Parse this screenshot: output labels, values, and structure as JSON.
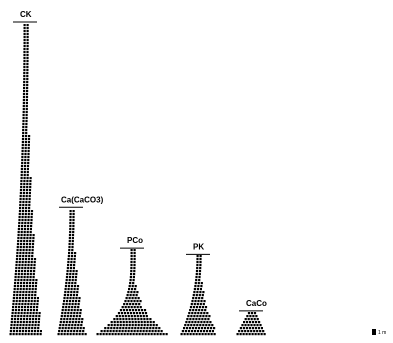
{
  "chart_data": {
    "type": "bar",
    "subtype": "stacked-dot-histogram",
    "title": "",
    "xlabel": "",
    "ylabel": "",
    "grid": false,
    "legend": "none",
    "colors": {
      "background": "#ffffff",
      "marks": "#000000"
    },
    "categories": [
      "CK",
      "Ca(CaCO3)",
      "PCo",
      "PK",
      "CaCo"
    ],
    "values": [
      100,
      41,
      28,
      26,
      8
    ],
    "scale_label": "1 m"
  }
}
